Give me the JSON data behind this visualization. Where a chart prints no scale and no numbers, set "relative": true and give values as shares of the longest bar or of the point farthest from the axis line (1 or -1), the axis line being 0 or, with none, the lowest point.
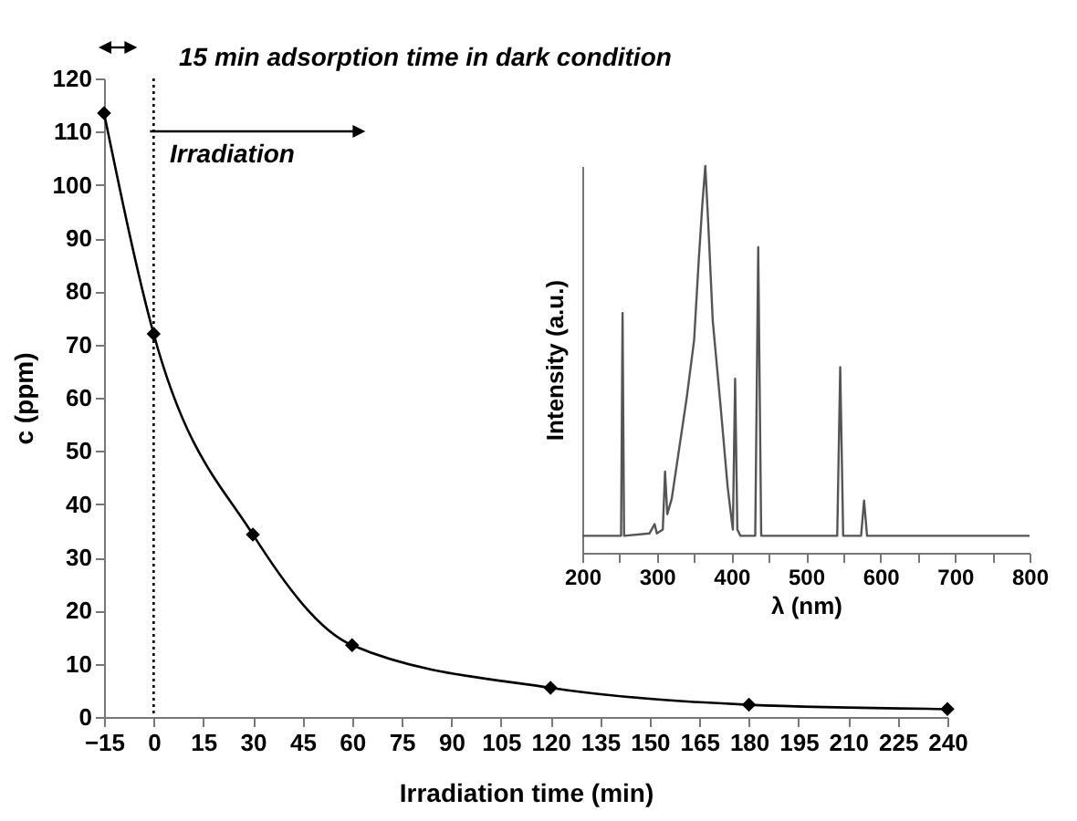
{
  "chart_data": [
    {
      "type": "line",
      "xlabel": "Irradiation time (min)",
      "ylabel": "c (ppm)",
      "x": [
        -15,
        0,
        30,
        60,
        120,
        180,
        240
      ],
      "series": [
        {
          "color": "#000000",
          "values": [
            113.5,
            72,
            34.3,
            13.5,
            5.5,
            2.3,
            1.5
          ]
        }
      ],
      "marker": "diamond",
      "xlim": [
        -15,
        240
      ],
      "xticks": [
        -15,
        0,
        15,
        30,
        45,
        60,
        75,
        90,
        105,
        120,
        135,
        150,
        165,
        180,
        195,
        210,
        225,
        240
      ],
      "ylim": [
        0,
        120
      ],
      "yticks": [
        0,
        10,
        20,
        30,
        40,
        50,
        60,
        70,
        80,
        90,
        100,
        110,
        120
      ],
      "ref_lines": [
        {
          "axis": "x",
          "value": 0,
          "color": "#000000",
          "line_style": "dotted"
        }
      ],
      "annotations": [
        "15 min adsorption time in dark condition",
        "Irradiation"
      ],
      "grid": false,
      "legend": false
    },
    {
      "type": "line",
      "xlabel": "λ (nm)",
      "ylabel": "Intensity (a.u.)",
      "relative": true,
      "x": [
        200,
        250,
        252,
        254,
        256,
        290,
        297,
        300,
        308,
        311,
        314,
        320,
        330,
        340,
        350,
        356,
        361,
        365,
        369,
        375,
        385,
        395,
        400,
        402,
        405,
        408,
        412,
        432,
        436,
        440,
        542,
        546,
        550,
        574,
        578,
        582,
        800
      ],
      "series": [
        {
          "color": "#555555",
          "values": [
            0.044,
            0.044,
            0.044,
            0.62,
            0.044,
            0.05,
            0.074,
            0.05,
            0.06,
            0.21,
            0.1,
            0.14,
            0.27,
            0.4,
            0.55,
            0.75,
            0.9,
            1,
            0.85,
            0.6,
            0.39,
            0.17,
            0.09,
            0.06,
            0.45,
            0.06,
            0.044,
            0.044,
            0.79,
            0.044,
            0.044,
            0.48,
            0.044,
            0.044,
            0.135,
            0.044,
            0.044
          ]
        }
      ],
      "xlim": [
        200,
        800
      ],
      "xticks": [
        200,
        {
          "value": 250,
          "label": null
        },
        300,
        {
          "value": 350,
          "label": null
        },
        400,
        {
          "value": 450,
          "label": null
        },
        500,
        {
          "value": 550,
          "label": null
        },
        600,
        {
          "value": 650,
          "label": null
        },
        700,
        {
          "value": 750,
          "label": null
        },
        800
      ],
      "grid": false,
      "legend": false
    }
  ]
}
